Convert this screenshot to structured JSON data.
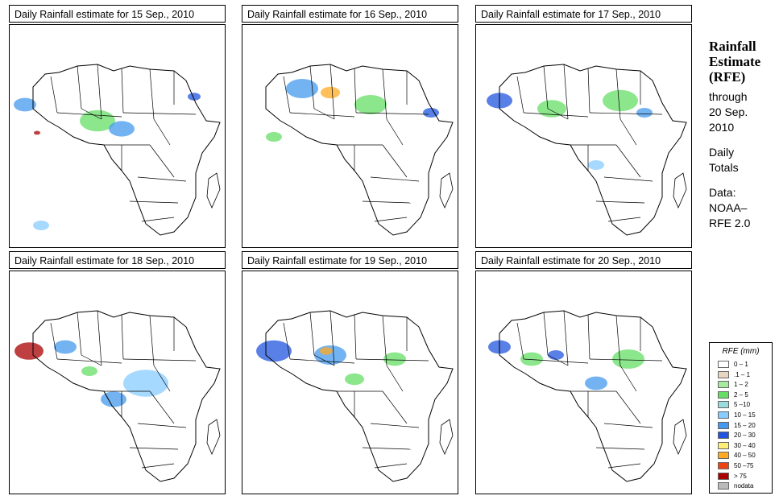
{
  "panels": [
    {
      "title": "Daily Rainfall estimate for  15 Sep., 2010"
    },
    {
      "title": "Daily Rainfall estimate for  16 Sep., 2010"
    },
    {
      "title": "Daily Rainfall estimate for  17 Sep., 2010"
    },
    {
      "title": "Daily Rainfall estimate for  18 Sep., 2010"
    },
    {
      "title": "Daily Rainfall estimate for  19 Sep., 2010"
    },
    {
      "title": "Daily Rainfall estimate for  20 Sep., 2010"
    }
  ],
  "sidebar": {
    "title_line1": "Rainfall",
    "title_line2": "Estimate",
    "title_line3": "(RFE)",
    "through": "through",
    "date_line1": "20 Sep.",
    "date_line2": "2010",
    "totals_line1": "Daily",
    "totals_line2": "Totals",
    "data_line1": "Data:",
    "data_line2": "NOAA–",
    "data_line3": "RFE 2.0"
  },
  "legend": {
    "title": "RFE (mm)",
    "items": [
      {
        "label": "0 – 1",
        "color": "#ffffff"
      },
      {
        "label": ".1 – 1",
        "color": "#e8d6c0"
      },
      {
        "label": "1 – 2",
        "color": "#a8eaa0"
      },
      {
        "label": "2 – 5",
        "color": "#66dd66"
      },
      {
        "label": "5 –10",
        "color": "#99dddd"
      },
      {
        "label": "10 – 15",
        "color": "#88ccff"
      },
      {
        "label": "15 – 20",
        "color": "#4499ee"
      },
      {
        "label": "20 – 30",
        "color": "#2255dd"
      },
      {
        "label": "30 – 40",
        "color": "#ffee77"
      },
      {
        "label": "40 – 50",
        "color": "#ffaa22"
      },
      {
        "label": "50 –75",
        "color": "#ee4411"
      },
      {
        "label": "> 75",
        "color": "#aa0000"
      },
      {
        "label": "nodata",
        "color": "#bbbbbb"
      }
    ]
  }
}
